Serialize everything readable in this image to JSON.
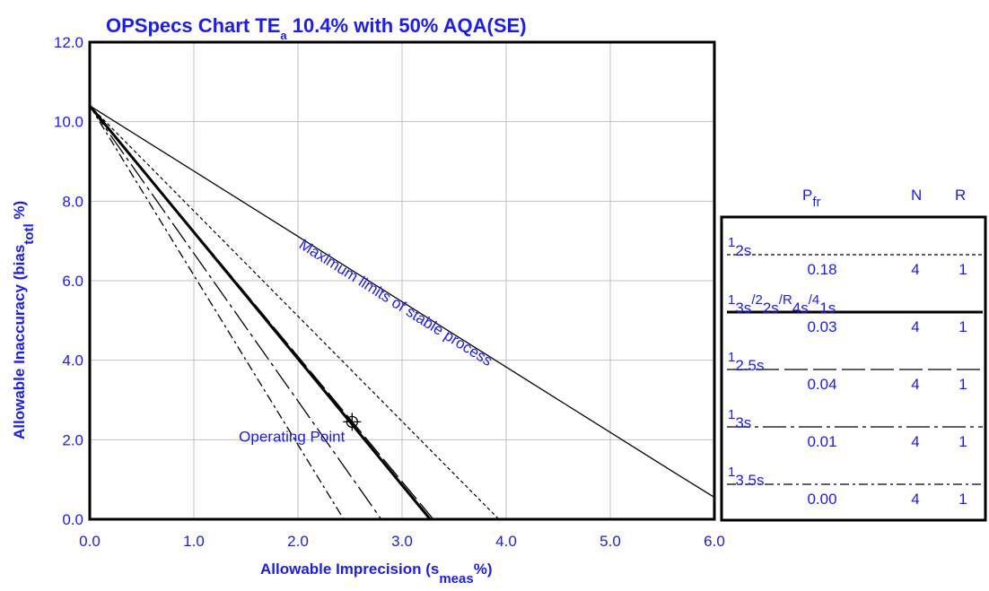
{
  "chart_data": {
    "type": "line",
    "title": "OPSpecs Chart TE",
    "title_subscript": "a",
    "title_suffix": " 10.4% with 50% AQA(SE)",
    "xlabel": "Allowable Imprecision (s",
    "xlabel_subscript": "meas",
    "xlabel_suffix": "%)",
    "ylabel": "Allowable Inaccuracy (bias",
    "ylabel_subscript": "totl",
    "ylabel_suffix": " %)",
    "xlim": [
      0.0,
      6.0
    ],
    "ylim": [
      0.0,
      12.0
    ],
    "x_ticks": [
      "0.0",
      "1.0",
      "2.0",
      "3.0",
      "4.0",
      "5.0",
      "6.0"
    ],
    "y_ticks": [
      "0.0",
      "2.0",
      "4.0",
      "6.0",
      "8.0",
      "10.0",
      "12.0"
    ],
    "grid": true,
    "series": [
      {
        "name": "1_2s",
        "style": "dashed",
        "x": [
          0.0,
          3.93
        ],
        "y": [
          10.4,
          0.0
        ]
      },
      {
        "name": "1_3s/2_2s/R_4s/4_1s",
        "style": "thick",
        "x": [
          0.0,
          3.27
        ],
        "y": [
          10.4,
          0.0
        ]
      },
      {
        "name": "1_2.5s",
        "style": "longdash",
        "x": [
          0.0,
          3.3
        ],
        "y": [
          10.4,
          0.0
        ]
      },
      {
        "name": "1_3s",
        "style": "dashdot-long",
        "x": [
          0.0,
          2.8
        ],
        "y": [
          10.4,
          0.0
        ]
      },
      {
        "name": "1_3.5s",
        "style": "dashdot",
        "x": [
          0.0,
          2.44
        ],
        "y": [
          10.4,
          0.0
        ]
      },
      {
        "name": "",
        "style": "solid",
        "x": [
          0.0,
          5.6,
          6.0
        ],
        "y": [
          10.4,
          1.2,
          0.55
        ]
      }
    ],
    "operating_point": {
      "x": 2.52,
      "y": 2.45,
      "label": "Operating Point"
    },
    "annotation": "Maximum limits of stable process",
    "legend": {
      "placement": "right",
      "headers": {
        "pfr": "P",
        "pfr_sub": "fr",
        "n": "N",
        "r": "R"
      },
      "rows": [
        {
          "rule_base": "1",
          "rule_sub": "2s",
          "rule_parts": [
            {
              "sup": "1",
              "sub": "2s"
            }
          ],
          "pfr": "0.18",
          "n": "4",
          "r": "1",
          "style": "dashed"
        },
        {
          "rule_parts": [
            {
              "sup": "1",
              "sub": "3s"
            },
            {
              "sup": "/2",
              "sub": "2s"
            },
            {
              "sup": "/R",
              "sub": "4s"
            },
            {
              "sup": "/4",
              "sub": "1s"
            }
          ],
          "pfr": "0.03",
          "n": "4",
          "r": "1",
          "style": "thick"
        },
        {
          "rule_parts": [
            {
              "sup": "1",
              "sub": "2.5s"
            }
          ],
          "pfr": "0.04",
          "n": "4",
          "r": "1",
          "style": "longdash"
        },
        {
          "rule_parts": [
            {
              "sup": "1",
              "sub": "3s"
            }
          ],
          "pfr": "0.01",
          "n": "4",
          "r": "1",
          "style": "dashdot-long"
        },
        {
          "rule_parts": [
            {
              "sup": "1",
              "sub": "3.5s"
            }
          ],
          "pfr": "0.00",
          "n": "4",
          "r": "1",
          "style": "dashdot"
        }
      ]
    }
  }
}
